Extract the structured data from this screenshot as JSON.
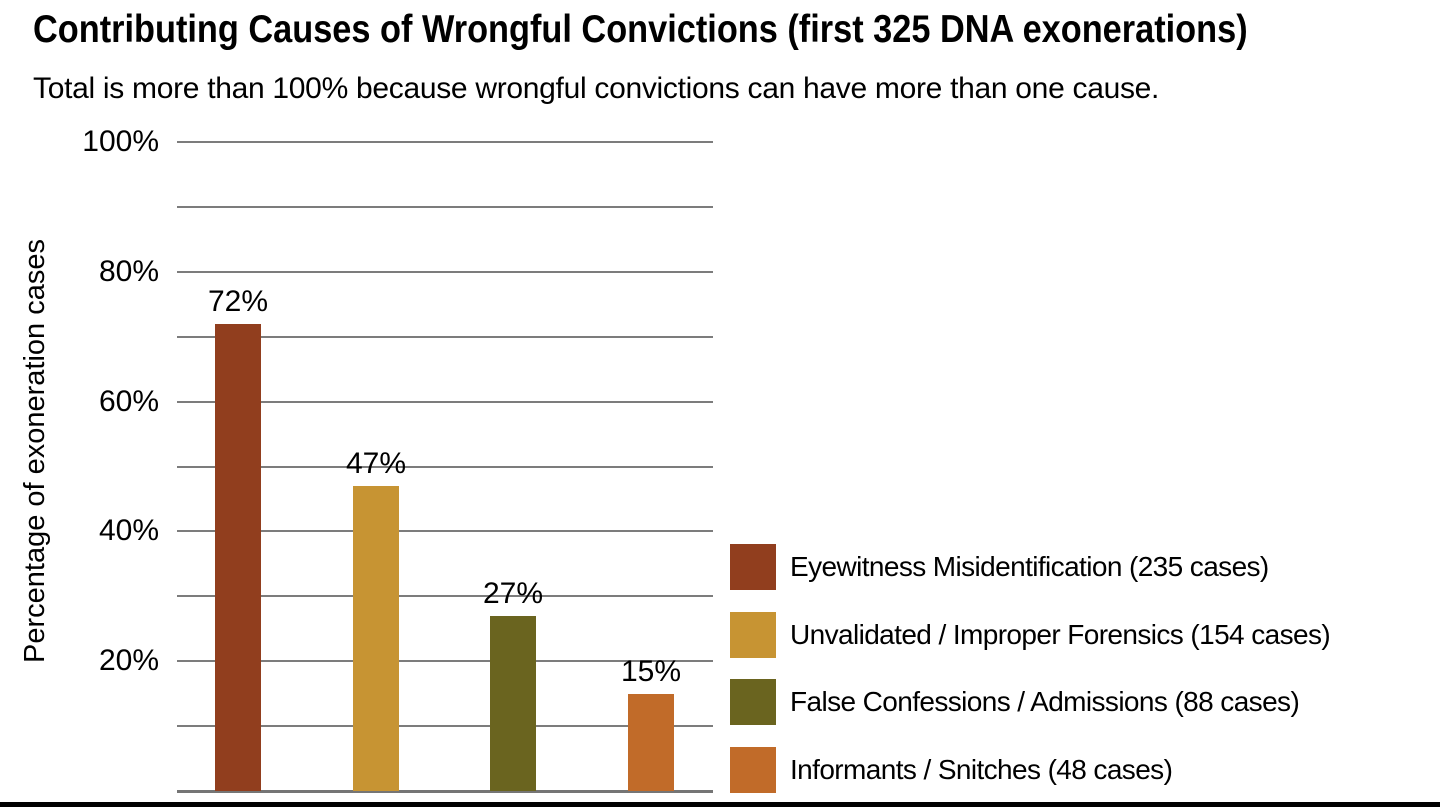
{
  "title": "Contributing Causes of Wrongful Convictions (first 325 DNA exonerations)",
  "subtitle": "Total is more than 100% because wrongful convictions can have more than one cause.",
  "chart_data": {
    "type": "bar",
    "title": "Contributing Causes of Wrongful Convictions (first 325 DNA exonerations)",
    "subtitle": "Total is more than 100% because wrongful convictions can have more than one cause.",
    "xlabel": "",
    "ylabel": "Percentage of exoneration cases",
    "ylim": [
      0,
      100
    ],
    "grid": true,
    "gridline_step_percent": 10,
    "tick_step_percent": 20,
    "ytick_labels": [
      "20%",
      "40%",
      "60%",
      "80%",
      "100%"
    ],
    "legend_position": "right",
    "categories": [
      "Eyewitness Misidentification",
      "Unvalidated / Improper Forensics",
      "False Confessions / Admissions",
      "Informants / Snitches"
    ],
    "values": [
      72,
      47,
      27,
      15
    ],
    "value_labels": [
      "72%",
      "47%",
      "27%",
      "15%"
    ],
    "case_counts": [
      235,
      154,
      88,
      48
    ],
    "legend_labels": [
      "Eyewitness Misidentification (235 cases)",
      "Unvalidated / Improper Forensics (154 cases)",
      "False Confessions / Admissions (88 cases)",
      "Informants / Snitches (48 cases)"
    ],
    "bar_colors": [
      "#913E1E",
      "#C79433",
      "#6A641F",
      "#C16B29"
    ],
    "gridline_color": "#7C7C7C",
    "text_color": "#000000"
  }
}
